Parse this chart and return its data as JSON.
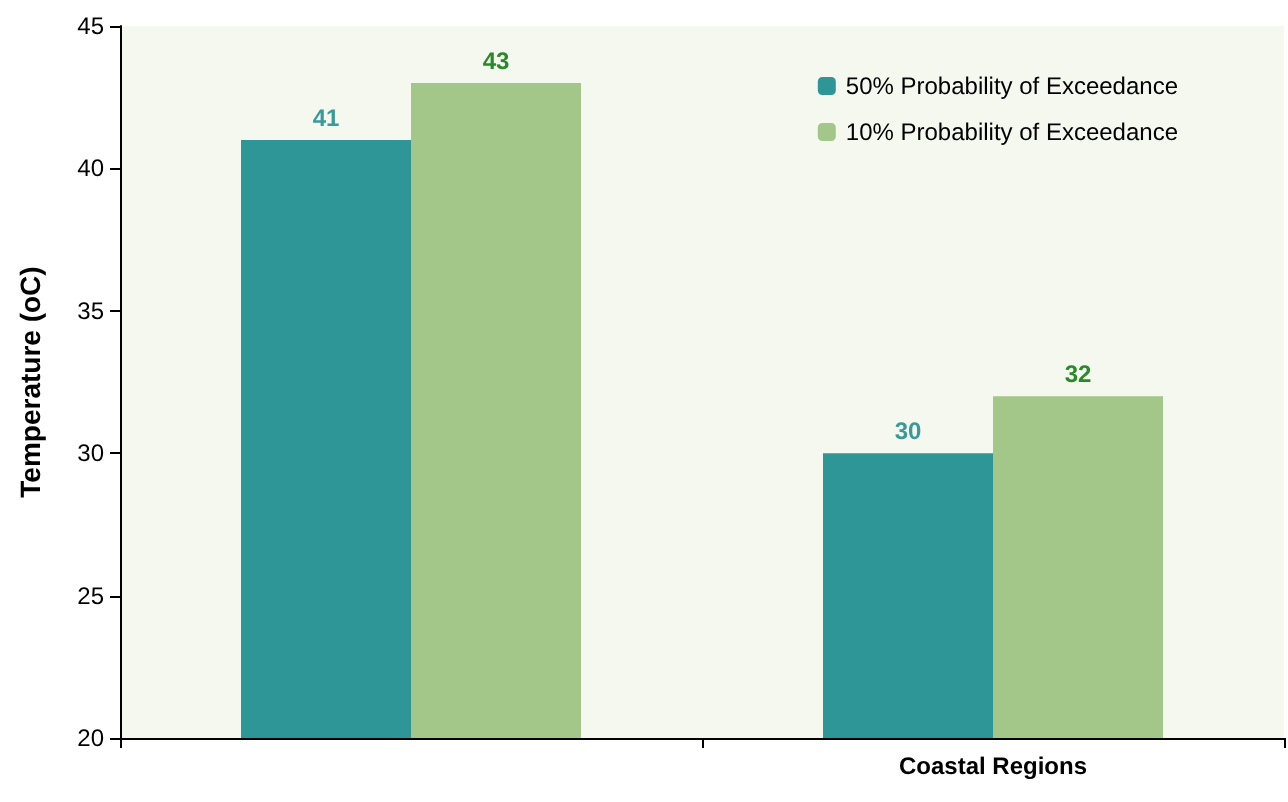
{
  "chart_data": {
    "type": "bar",
    "ylabel": "Temperature (oC)",
    "categories": [
      null,
      "Coastal Regions"
    ],
    "series": [
      {
        "name": "50% Probability of Exceedance",
        "color": "#2e9696",
        "values": [
          41,
          30
        ]
      },
      {
        "name": "10% Probability of Exceedance",
        "color": "#a3c788",
        "values": [
          43,
          32
        ]
      }
    ],
    "ylim": [
      20,
      45
    ],
    "yticks": [
      20,
      25,
      30,
      35,
      40,
      45
    ],
    "grid": false,
    "legend": "top right",
    "data_labels": true
  }
}
